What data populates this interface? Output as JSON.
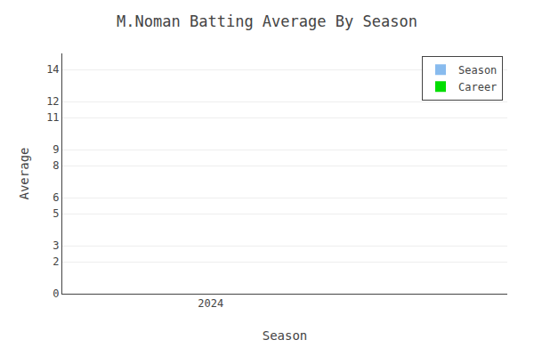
{
  "chart_data": {
    "type": "bar",
    "title": "M.Noman Batting Average By Season",
    "x_label": "Season",
    "y_label": "Average",
    "x": [],
    "series": [
      {
        "name": "Season",
        "color": "#88bbee",
        "values": []
      },
      {
        "name": "Career",
        "color": "#00dd00",
        "values": []
      }
    ],
    "xlim": [
      2023.6,
      2024.8
    ],
    "xticks": [
      2024
    ],
    "ylim": [
      0,
      15
    ],
    "yticks": [
      0,
      2,
      3,
      5,
      6,
      8,
      9,
      11,
      12,
      14
    ],
    "grid": "y",
    "legend": "upper right"
  }
}
